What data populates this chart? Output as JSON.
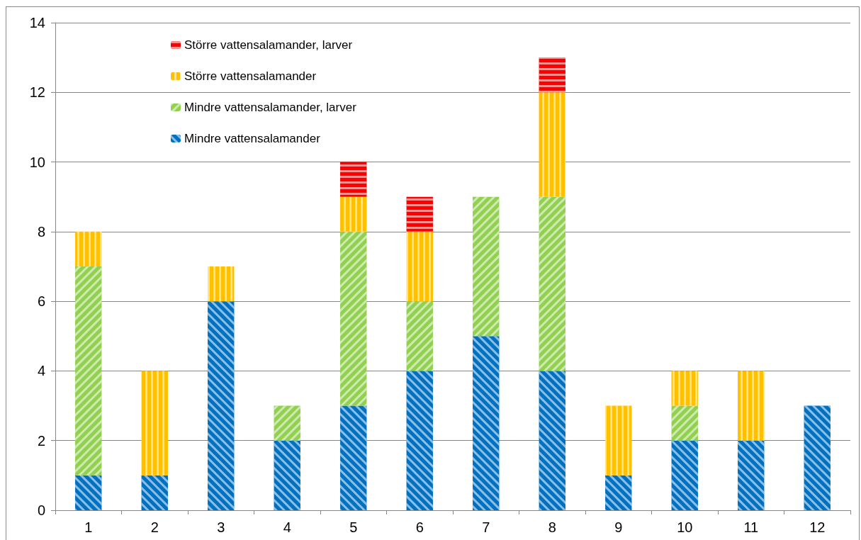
{
  "chart_data": {
    "type": "bar",
    "stacked": true,
    "categories": [
      "1",
      "2",
      "3",
      "4",
      "5",
      "6",
      "7",
      "8",
      "9",
      "10",
      "11",
      "12"
    ],
    "series": [
      {
        "name": "Mindre vattensalamander",
        "color": "#0070c0",
        "values": [
          1,
          1,
          6,
          2,
          3,
          4,
          5,
          4,
          1,
          2,
          2,
          3
        ]
      },
      {
        "name": "Mindre vattensalamander, larver",
        "color": "#92d050",
        "values": [
          6,
          0,
          0,
          1,
          5,
          2,
          4,
          5,
          0,
          1,
          0,
          0
        ]
      },
      {
        "name": "Större vattensalamander",
        "color": "#ffc000",
        "values": [
          1,
          3,
          1,
          0,
          1,
          2,
          0,
          3,
          2,
          1,
          2,
          0
        ]
      },
      {
        "name": "Större vattensalamander, larver",
        "color": "#ff0000",
        "values": [
          0,
          0,
          0,
          0,
          1,
          1,
          0,
          1,
          0,
          0,
          0,
          0
        ]
      }
    ],
    "ylim": [
      0,
      14
    ],
    "yticks": [
      0,
      2,
      4,
      6,
      8,
      10,
      12,
      14
    ],
    "grid": "y",
    "legend": "top left"
  }
}
